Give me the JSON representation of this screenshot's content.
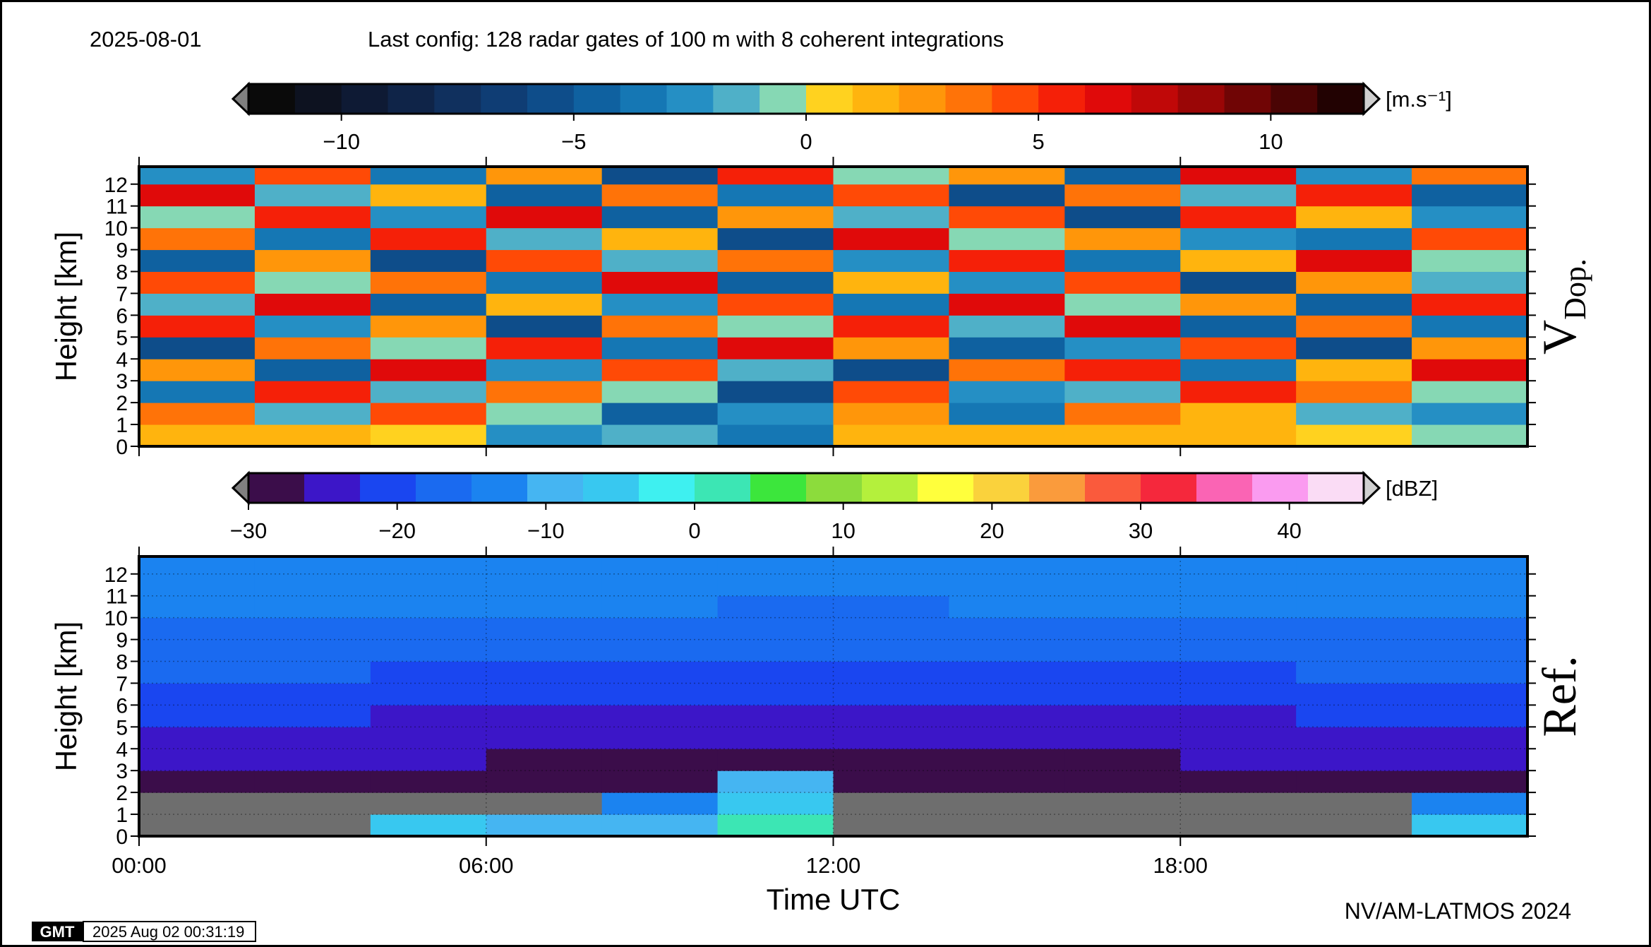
{
  "header": {
    "date": "2025-08-01",
    "config": "Last config: 128 radar gates of 100 m with 8 coherent integrations"
  },
  "footer": {
    "credit": "NV/AM-LATMOS 2024",
    "logo": "GMT",
    "timestamp": "2025 Aug 02 00:31:19"
  },
  "chart_data": [
    {
      "type": "heatmap",
      "ylabel": "Height [km]",
      "side_label": "V",
      "side_label_sub": "Dop.",
      "xlim": [
        0,
        24
      ],
      "xticks": [
        0,
        6,
        12,
        18
      ],
      "ylim": [
        0,
        12.8
      ],
      "yticks": [
        0,
        1,
        2,
        3,
        4,
        5,
        6,
        7,
        8,
        9,
        10,
        11,
        12
      ],
      "grid": false,
      "x_edges": [
        0,
        2,
        4,
        6,
        8,
        10,
        12,
        14,
        16,
        18,
        20,
        22,
        24
      ],
      "y_edges": [
        0,
        1,
        2,
        3,
        4,
        5,
        6,
        7,
        8,
        9,
        10,
        11,
        12,
        12.8
      ],
      "null_color": "#6e6e6e",
      "z": [
        [
          1,
          1,
          0.5,
          -3,
          -2,
          -4,
          1,
          1,
          1,
          1,
          0.5,
          -1
        ],
        [
          3,
          -2,
          4,
          -1,
          -5,
          -3,
          2,
          -4,
          3,
          1,
          -2,
          -3
        ],
        [
          -4,
          5,
          -2,
          3,
          -1,
          -6,
          4,
          -3,
          -2,
          5,
          3,
          -1
        ],
        [
          2,
          -5,
          6,
          -3,
          4,
          -2,
          -6,
          3,
          5,
          -4,
          1,
          6
        ],
        [
          -6,
          3,
          -1,
          5,
          -4,
          6,
          2,
          -5,
          -3,
          4,
          -6,
          2
        ],
        [
          5,
          -3,
          2,
          -6,
          3,
          -1,
          5,
          -2,
          6,
          -5,
          3,
          -4
        ],
        [
          -2,
          6,
          -5,
          1,
          -3,
          4,
          -4,
          6,
          -1,
          2,
          -5,
          5
        ],
        [
          4,
          -1,
          3,
          -4,
          6,
          -5,
          1,
          -3,
          4,
          -6,
          2,
          -2
        ],
        [
          -5,
          2,
          -6,
          4,
          -2,
          3,
          -3,
          5,
          -4,
          1,
          6,
          -1
        ],
        [
          3,
          -4,
          5,
          -2,
          1,
          -6,
          6,
          -1,
          2,
          -3,
          -4,
          4
        ],
        [
          -1,
          5,
          -3,
          6,
          -5,
          2,
          -2,
          4,
          -6,
          5,
          1,
          -3
        ],
        [
          6,
          -2,
          1,
          -5,
          3,
          -4,
          4,
          -6,
          3,
          -2,
          5,
          -5
        ],
        [
          -3,
          4,
          -4,
          2,
          -6,
          5,
          -1,
          2,
          -5,
          6,
          -3,
          3
        ]
      ],
      "colorbar": {
        "lim": [
          -12,
          12
        ],
        "unit": "[m.s⁻¹]",
        "under_color": "#808080",
        "over_color": "#d0d0d0",
        "ticks": [
          {
            "value": -10,
            "label": "−10"
          },
          {
            "value": -5,
            "label": "−5"
          },
          0,
          5,
          10
        ],
        "colors": [
          "#0a0a0a",
          "#0d1220",
          "#0e1a34",
          "#0f2448",
          "#10305e",
          "#0f3d74",
          "#0e4d8a",
          "#0f61a0",
          "#1577b4",
          "#258fc4",
          "#4fb0c8",
          "#86d8b4",
          "#ffd21f",
          "#ffb40e",
          "#ff960a",
          "#ff7308",
          "#ff4a06",
          "#f52008",
          "#e00a0a",
          "#c00808",
          "#9a0606",
          "#700505",
          "#4a0404",
          "#220202"
        ]
      }
    },
    {
      "type": "heatmap",
      "ylabel": "Height [km]",
      "side_label": "Ref.",
      "xlabel": "Time UTC",
      "xlim": [
        0,
        24
      ],
      "xticks": [
        {
          "value": 0,
          "label": "00:00"
        },
        {
          "value": 6,
          "label": "06:00"
        },
        {
          "value": 12,
          "label": "12:00"
        },
        {
          "value": 18,
          "label": "18:00"
        }
      ],
      "ylim": [
        0,
        12.8
      ],
      "yticks": [
        0,
        1,
        2,
        3,
        4,
        5,
        6,
        7,
        8,
        9,
        10,
        11,
        12
      ],
      "grid": true,
      "x_edges": [
        0,
        2,
        4,
        6,
        8,
        10,
        12,
        14,
        16,
        18,
        20,
        22,
        24
      ],
      "y_edges": [
        0,
        1,
        2,
        3,
        4,
        5,
        6,
        7,
        8,
        9,
        10,
        11,
        12,
        12.8
      ],
      "null_color": "#6e6e6e",
      "z": [
        [
          null,
          null,
          -5,
          -10,
          -8,
          0,
          null,
          null,
          null,
          null,
          null,
          -5
        ],
        [
          null,
          null,
          null,
          null,
          -12,
          -5,
          null,
          null,
          null,
          null,
          null,
          -15
        ],
        [
          -27,
          -27,
          -27,
          -27,
          -27,
          -10,
          -28,
          -28,
          -27,
          -27,
          -27,
          -27
        ],
        [
          -26,
          -26,
          -26,
          -27,
          -27,
          -27,
          -28,
          -27,
          -27,
          -26,
          -26,
          -26
        ],
        [
          -24,
          -24,
          -25,
          -25,
          -26,
          -26,
          -26,
          -26,
          -25,
          -25,
          -24,
          -24
        ],
        [
          -22,
          -22,
          -23,
          -23,
          -24,
          -24,
          -24,
          -24,
          -23,
          -23,
          -22,
          -22
        ],
        [
          -20,
          -20,
          -21,
          -22,
          -22,
          -22,
          -22,
          -22,
          -21,
          -21,
          -20,
          -20
        ],
        [
          -18,
          -18,
          -19,
          -20,
          -20,
          -20,
          -20,
          -20,
          -19,
          -19,
          -18,
          -18
        ],
        [
          -17,
          -17,
          -17,
          -18,
          -18,
          -18,
          -18,
          -18,
          -18,
          -17,
          -17,
          -17
        ],
        [
          -16,
          -16,
          -16,
          -16,
          -17,
          -17,
          -17,
          -17,
          -16,
          -16,
          -16,
          -16
        ],
        [
          -15,
          -15,
          -15,
          -15,
          -15,
          -16,
          -16,
          -15,
          -15,
          -15,
          -15,
          -15
        ],
        [
          -14,
          -14,
          -14,
          -14,
          -14,
          -15,
          -15,
          -14,
          -14,
          -14,
          -14,
          -14
        ],
        [
          -14,
          -14,
          -14,
          -14,
          -14,
          -14,
          -14,
          -14,
          -14,
          -14,
          -14,
          -14
        ]
      ],
      "colorbar": {
        "lim": [
          -30,
          45
        ],
        "unit": "[dBZ]",
        "under_color": "#808080",
        "over_color": "#d0d0d0",
        "ticks": [
          {
            "value": -30,
            "label": "−30"
          },
          {
            "value": -20,
            "label": "−20"
          },
          {
            "value": -10,
            "label": "−10"
          },
          0,
          10,
          20,
          30,
          40
        ],
        "colors": [
          "#3b0d4a",
          "#3c16c8",
          "#1a46f0",
          "#1a6af0",
          "#1b83f0",
          "#45b5f2",
          "#38c8f0",
          "#3ef0f0",
          "#3ce6b4",
          "#3ce63c",
          "#8cdc3c",
          "#b4f03c",
          "#ffff3c",
          "#fad23c",
          "#fa9b3c",
          "#fa5a3c",
          "#f5283c",
          "#fa64b4",
          "#fa9bf0",
          "#fadcf5"
        ]
      }
    }
  ]
}
